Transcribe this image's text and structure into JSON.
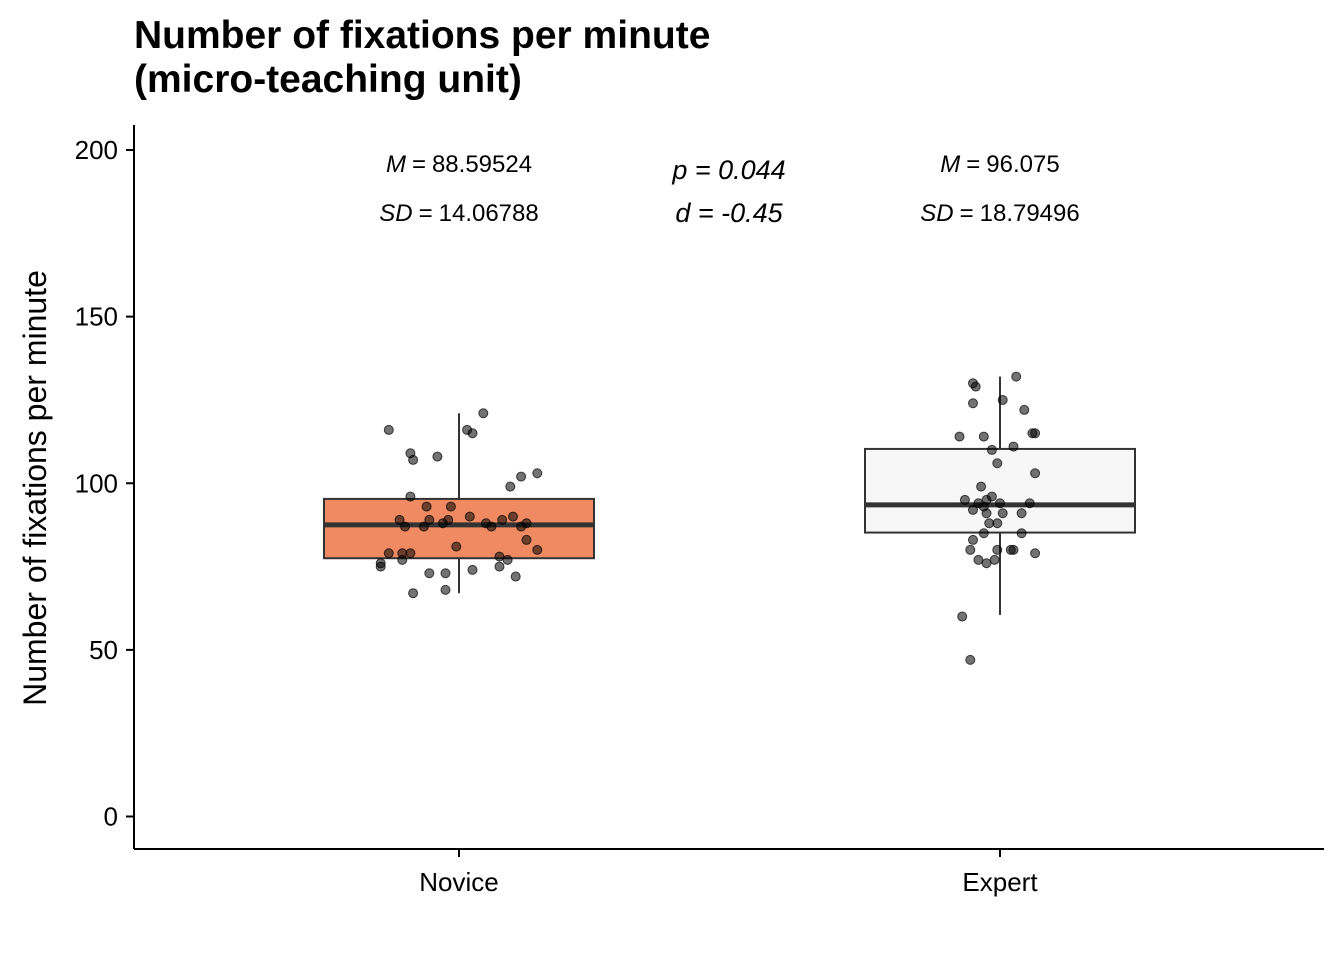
{
  "chart_data": {
    "type": "boxplot",
    "title_lines": [
      "Number of fixations per minute",
      "(micro-teaching unit)"
    ],
    "xlabel": "",
    "ylabel": "Number of fixations per minute",
    "ylim": [
      -10,
      208
    ],
    "yticks": [
      0,
      50,
      100,
      150,
      200
    ],
    "categories": [
      "Novice",
      "Expert"
    ],
    "colors": {
      "Novice": "#EF8A62",
      "Expert": "#F7F7F7",
      "points": "#000000"
    },
    "boxes": [
      {
        "category": "Novice",
        "q1": 77.5,
        "median": 87.5,
        "q3": 95.3,
        "whisker_low": 67,
        "whisker_high": 121
      },
      {
        "category": "Expert",
        "q1": 85.2,
        "median": 93.5,
        "q3": 110.3,
        "whisker_low": 60.5,
        "whisker_high": 132
      }
    ],
    "points": {
      "Novice": [
        [
          -0.26,
          116
        ],
        [
          -0.18,
          109
        ],
        [
          -0.17,
          107
        ],
        [
          -0.08,
          108
        ],
        [
          0.03,
          116
        ],
        [
          0.05,
          115
        ],
        [
          0.09,
          121
        ],
        [
          0.29,
          103
        ],
        [
          0.23,
          102
        ],
        [
          0.19,
          99
        ],
        [
          -0.18,
          96
        ],
        [
          -0.12,
          93
        ],
        [
          -0.03,
          93
        ],
        [
          0.04,
          90
        ],
        [
          0.16,
          89
        ],
        [
          0.2,
          90
        ],
        [
          0.25,
          88
        ],
        [
          0.23,
          87
        ],
        [
          -0.22,
          89
        ],
        [
          -0.2,
          87
        ],
        [
          -0.11,
          89
        ],
        [
          -0.13,
          87
        ],
        [
          -0.06,
          88
        ],
        [
          -0.04,
          89
        ],
        [
          0.1,
          88
        ],
        [
          0.12,
          87
        ],
        [
          -0.01,
          81
        ],
        [
          -0.26,
          79
        ],
        [
          -0.21,
          79
        ],
        [
          -0.18,
          79
        ],
        [
          -0.29,
          76
        ],
        [
          -0.29,
          75
        ],
        [
          -0.21,
          77
        ],
        [
          -0.11,
          73
        ],
        [
          -0.05,
          73
        ],
        [
          0.05,
          74
        ],
        [
          0.15,
          75
        ],
        [
          0.15,
          78
        ],
        [
          0.18,
          77
        ],
        [
          0.25,
          83
        ],
        [
          0.29,
          80
        ],
        [
          0.21,
          72
        ],
        [
          -0.17,
          67
        ],
        [
          -0.05,
          68
        ]
      ],
      "Expert": [
        [
          -0.1,
          130
        ],
        [
          -0.09,
          129
        ],
        [
          -0.1,
          124
        ],
        [
          0.06,
          132
        ],
        [
          0.01,
          125
        ],
        [
          0.09,
          122
        ],
        [
          -0.15,
          114
        ],
        [
          -0.06,
          114
        ],
        [
          0.12,
          115
        ],
        [
          0.05,
          111
        ],
        [
          -0.03,
          110
        ],
        [
          -0.01,
          106
        ],
        [
          0.13,
          115
        ],
        [
          0.13,
          103
        ],
        [
          -0.07,
          99
        ],
        [
          -0.13,
          95
        ],
        [
          -0.08,
          94
        ],
        [
          -0.03,
          96
        ],
        [
          -0.05,
          95
        ],
        [
          -0.06,
          93
        ],
        [
          -0.1,
          92
        ],
        [
          0,
          94
        ],
        [
          0.11,
          94
        ],
        [
          -0.05,
          91
        ],
        [
          0.01,
          91
        ],
        [
          0.08,
          91
        ],
        [
          -0.04,
          88
        ],
        [
          -0.01,
          88
        ],
        [
          0.08,
          85
        ],
        [
          -0.1,
          83
        ],
        [
          -0.06,
          85
        ],
        [
          -0.11,
          80
        ],
        [
          -0.01,
          80
        ],
        [
          0.05,
          80
        ],
        [
          0.13,
          79
        ],
        [
          -0.08,
          77
        ],
        [
          -0.05,
          76
        ],
        [
          -0.02,
          77
        ],
        [
          0.04,
          80
        ],
        [
          -0.14,
          60
        ],
        [
          -0.11,
          47
        ]
      ]
    },
    "annotations": {
      "novice": {
        "m_label": "M",
        "m_value": "88.59524",
        "sd_label": "SD",
        "sd_value": "14.06788"
      },
      "expert": {
        "m_label": "M",
        "m_value": "96.075",
        "sd_label": "SD",
        "sd_value": "18.79496"
      },
      "p_text": "p = 0.044",
      "d_text": "d = -0.45"
    },
    "equals_sign": "="
  }
}
